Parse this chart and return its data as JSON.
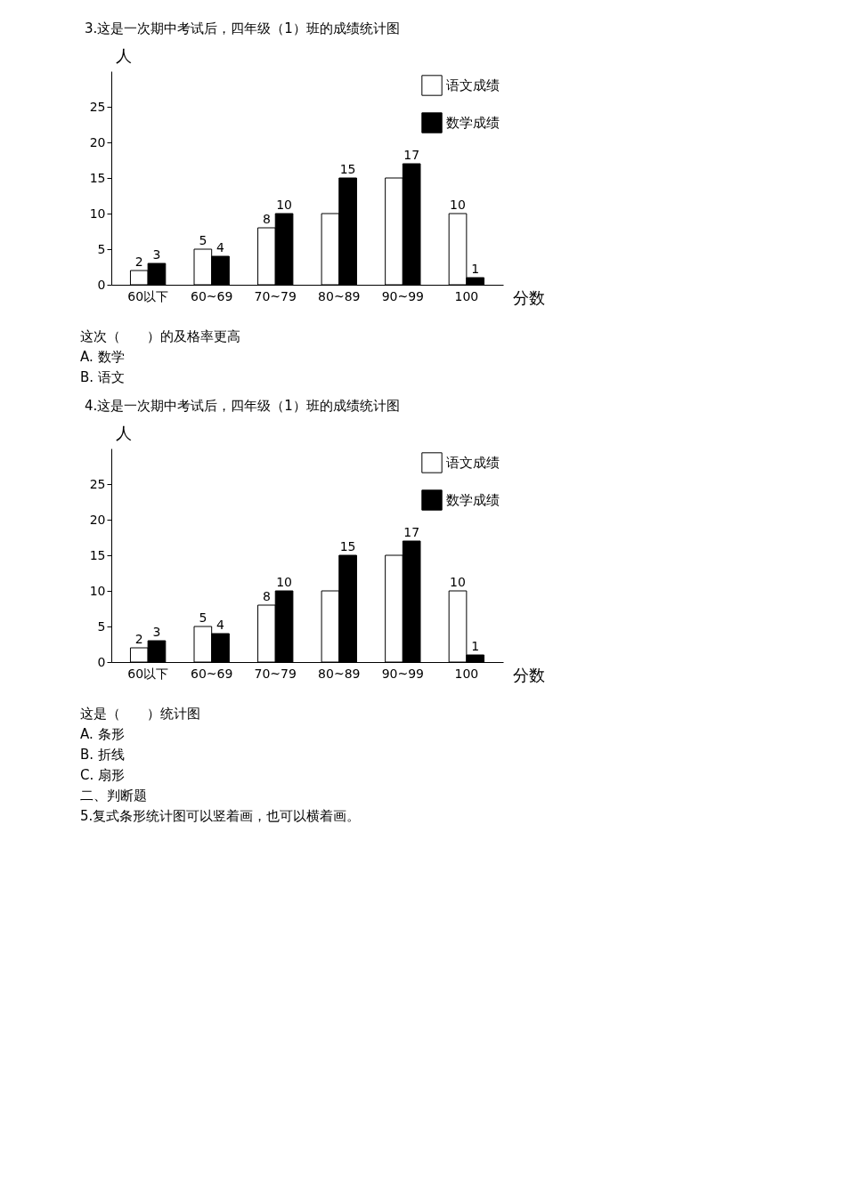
{
  "chart_data": [
    {
      "type": "bar",
      "title": "3.这是一次期中考试后，四年级（1）班的成绩统计图",
      "xlabel": "分数",
      "ylabel": "人",
      "categories": [
        "60以下",
        "60~69",
        "70~79",
        "80~89",
        "90~99",
        "100"
      ],
      "series": [
        {
          "name": "语文成绩",
          "color": "#ffffff",
          "values": [
            2,
            5,
            8,
            10,
            15,
            10
          ],
          "value_labels": [
            "2",
            "5",
            "8",
            null,
            null,
            "10"
          ]
        },
        {
          "name": "数学成绩",
          "color": "#000000",
          "values": [
            3,
            4,
            10,
            15,
            17,
            1
          ],
          "value_labels": [
            "3",
            "4",
            "10",
            "15",
            "17",
            "1"
          ]
        }
      ],
      "ylim": [
        0,
        30
      ],
      "yticks": [
        0,
        5,
        10,
        15,
        20,
        25
      ],
      "grid": false,
      "legend": "top right",
      "annotations": [
        "这次（　　）的及格率更高",
        "A. 数学",
        "B. 语文"
      ]
    },
    {
      "type": "bar",
      "title": "4.这是一次期中考试后，四年级（1）班的成绩统计图",
      "xlabel": "分数",
      "ylabel": "人",
      "categories": [
        "60以下",
        "60~69",
        "70~79",
        "80~89",
        "90~99",
        "100"
      ],
      "series": [
        {
          "name": "语文成绩",
          "color": "#ffffff",
          "values": [
            2,
            5,
            8,
            10,
            15,
            10
          ],
          "value_labels": [
            "2",
            "5",
            "8",
            null,
            null,
            "10"
          ]
        },
        {
          "name": "数学成绩",
          "color": "#000000",
          "values": [
            3,
            4,
            10,
            15,
            17,
            1
          ],
          "value_labels": [
            "3",
            "4",
            "10",
            "15",
            "17",
            "1"
          ]
        }
      ],
      "ylim": [
        0,
        30
      ],
      "yticks": [
        0,
        5,
        10,
        15,
        20,
        25
      ],
      "grid": false,
      "legend": "top right",
      "annotations": [
        "这是（　　）统计图",
        "A. 条形",
        "B. 折线",
        "C. 扇形",
        "二、判断题",
        "5.复式条形统计图可以竖着画，也可以横着画。"
      ]
    }
  ]
}
